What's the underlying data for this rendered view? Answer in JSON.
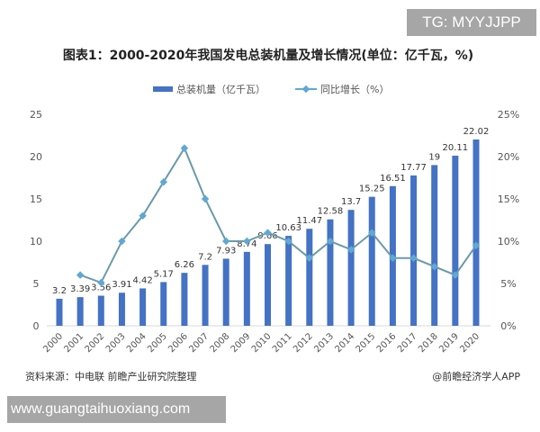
{
  "watermark_top": "TG: MYYJJPP",
  "watermark_bottom": "www.guangtaihuoxiang.com",
  "chart_data": {
    "type": "bar+line",
    "title": "图表1：2000-2020年我国发电总装机量及增长情况(单位：亿千瓦，%)",
    "source": "资料来源：中电联 前瞻产业研究院整理",
    "credit": "@前瞻经济学人APP",
    "legend_position": "top",
    "categories": [
      "2000",
      "2001",
      "2002",
      "2003",
      "2004",
      "2005",
      "2006",
      "2007",
      "2008",
      "2009",
      "2010",
      "2011",
      "2012",
      "2013",
      "2014",
      "2015",
      "2016",
      "2017",
      "2018",
      "2019",
      "2020"
    ],
    "series": [
      {
        "name": "总装机量（亿千瓦）",
        "type": "bar",
        "axis": "left",
        "color": "#4472c4",
        "values": [
          3.2,
          3.39,
          3.56,
          3.91,
          4.42,
          5.17,
          6.26,
          7.2,
          7.93,
          8.74,
          9.66,
          10.63,
          11.47,
          12.58,
          13.7,
          15.25,
          16.51,
          17.77,
          19,
          20.11,
          22.02
        ]
      },
      {
        "name": "同比增长（%）",
        "type": "line",
        "axis": "right",
        "color": "#5fa8d3",
        "values": [
          null,
          6,
          5.1,
          10,
          13,
          17,
          21,
          15,
          10,
          10,
          11,
          10,
          8,
          10,
          9,
          11,
          8,
          8,
          7,
          6,
          9.5
        ]
      }
    ],
    "y_left": {
      "min": 0,
      "max": 25,
      "ticks": [
        "0",
        "5",
        "10",
        "15",
        "20",
        "25"
      ]
    },
    "y_right": {
      "min": 0,
      "max": 25,
      "ticks": [
        "0%",
        "5%",
        "10%",
        "15%",
        "20%",
        "25%"
      ]
    },
    "grid": false
  }
}
